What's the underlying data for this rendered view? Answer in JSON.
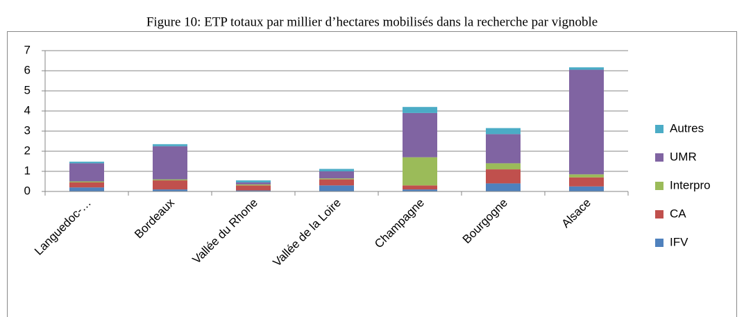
{
  "chart_data": {
    "type": "stacked_bar",
    "title": "Figure 10: ETP totaux  par millier d’hectares mobilisés dans la recherche par vignoble",
    "categories": [
      "Languedoc-…",
      "Bordeaux",
      "Vallée du Rhone",
      "Vallée de la Loire",
      "Champagne",
      "Bourgogne",
      "Alsace"
    ],
    "series": [
      {
        "name": "IFV",
        "color": "#4f81bd",
        "values": [
          0.2,
          0.1,
          0.05,
          0.3,
          0.1,
          0.4,
          0.25
        ]
      },
      {
        "name": "CA",
        "color": "#c0504d",
        "values": [
          0.25,
          0.45,
          0.25,
          0.3,
          0.2,
          0.7,
          0.45
        ]
      },
      {
        "name": "Interpro",
        "color": "#9bbb59",
        "values": [
          0.05,
          0.05,
          0.05,
          0.05,
          1.4,
          0.3,
          0.15
        ]
      },
      {
        "name": "UMR",
        "color": "#8064a2",
        "values": [
          0.9,
          1.65,
          0.1,
          0.35,
          2.2,
          1.45,
          5.2
        ]
      },
      {
        "name": "Autres",
        "color": "#4bacc6",
        "values": [
          0.08,
          0.1,
          0.1,
          0.12,
          0.3,
          0.3,
          0.12
        ]
      }
    ],
    "ylim": [
      0,
      7
    ],
    "yticks": [
      0,
      1,
      2,
      3,
      4,
      5,
      6,
      7
    ],
    "grid": true,
    "legend": "right"
  }
}
